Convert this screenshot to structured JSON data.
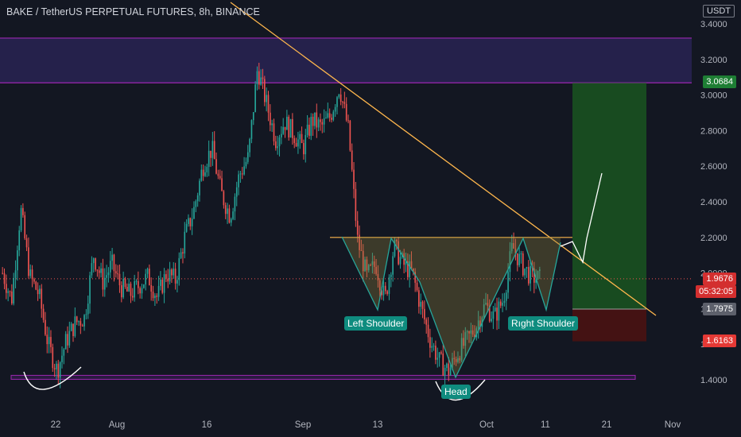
{
  "header": {
    "title": "BAKE / TetherUS PERPETUAL FUTURES, 8h, BINANCE",
    "unit": "USDT"
  },
  "annotations": {
    "left_shoulder": "Left Shoulder",
    "head": "Head",
    "right_shoulder": "Rıght Shoulder"
  },
  "price_labels": {
    "current": "1.9676",
    "countdown": "05:32:05",
    "target": "3.0684",
    "entry": "1.7975",
    "stop": "1.6163"
  },
  "colors": {
    "background": "#131722",
    "up": "#26a69a",
    "down": "#ef5350",
    "trendline": "#ffb74d",
    "zone_line": "#9c27b0",
    "target_zone": "#1b5e20",
    "stop_zone": "#4a1212"
  },
  "chart_data": {
    "type": "candlestick",
    "y_axis": {
      "range": [
        1.23,
        3.49
      ],
      "ticks": [
        "1.4000",
        "1.6000",
        "1.8000",
        "2.0000",
        "2.2000",
        "2.4000",
        "2.6000",
        "2.8000",
        "3.0000",
        "3.2000",
        "3.4000"
      ]
    },
    "x_axis": {
      "ticks": [
        "22",
        "Aug",
        "16",
        "Sep",
        "13",
        "Oct",
        "11",
        "21",
        "Nov"
      ]
    },
    "price_path": [
      [
        "Jul 15",
        2.0
      ],
      [
        "Jul 16",
        1.85
      ],
      [
        "Jul 17",
        2.36
      ],
      [
        "Jul 18",
        1.98
      ],
      [
        "Jul 19",
        1.88
      ],
      [
        "Jul 20",
        1.6
      ],
      [
        "Jul 21",
        1.45
      ],
      [
        "Jul 22",
        1.62
      ],
      [
        "Jul 23",
        1.72
      ],
      [
        "Jul 24",
        1.75
      ],
      [
        "Jul 25",
        2.1
      ],
      [
        "Jul 26",
        1.95
      ],
      [
        "Jul 27",
        2.05
      ],
      [
        "Jul 28",
        1.92
      ],
      [
        "Jul 29",
        1.88
      ],
      [
        "Jul 30",
        1.93
      ],
      [
        "Jul 31",
        1.98
      ],
      [
        "Aug 2",
        1.86
      ],
      [
        "Aug 4",
        2.0
      ],
      [
        "Aug 6",
        1.96
      ],
      [
        "Aug 8",
        2.2
      ],
      [
        "Aug 10",
        2.35
      ],
      [
        "Aug 11",
        2.6
      ],
      [
        "Aug 13",
        2.7
      ],
      [
        "Aug 15",
        2.45
      ],
      [
        "Aug 17",
        2.32
      ],
      [
        "Aug 18",
        2.55
      ],
      [
        "Aug 19",
        2.65
      ],
      [
        "Aug 20",
        3.15
      ],
      [
        "Aug 21",
        2.95
      ],
      [
        "Aug 22",
        2.75
      ],
      [
        "Aug 24",
        2.85
      ],
      [
        "Aug 26",
        2.78
      ],
      [
        "Aug 28",
        2.7
      ],
      [
        "Aug 30",
        2.86
      ],
      [
        "Sep 1",
        2.82
      ],
      [
        "Sep 3",
        2.88
      ],
      [
        "Sep 5",
        3.05
      ],
      [
        "Sep 6",
        2.8
      ],
      [
        "Sep 7",
        2.18
      ],
      [
        "Sep 8",
        1.98
      ],
      [
        "Sep 10",
        2.05
      ],
      [
        "Sep 12",
        1.85
      ],
      [
        "Sep 14",
        2.15
      ],
      [
        "Sep 15",
        2.05
      ],
      [
        "Sep 17",
        2.0
      ],
      [
        "Sep 19",
        1.8
      ],
      [
        "Sep 21",
        1.62
      ],
      [
        "Sep 23",
        1.5
      ],
      [
        "Sep 25",
        1.45
      ],
      [
        "Sep 27",
        1.55
      ],
      [
        "Sep 29",
        1.62
      ],
      [
        "Oct 1",
        1.7
      ],
      [
        "Oct 3",
        1.82
      ],
      [
        "Oct 5",
        1.75
      ],
      [
        "Oct 7",
        1.85
      ],
      [
        "Oct 8",
        2.15
      ],
      [
        "Oct 9",
        2.05
      ],
      [
        "Oct 10",
        1.98
      ],
      [
        "Oct 11",
        1.9676
      ]
    ],
    "levels": {
      "resistance_zone": [
        3.0684,
        3.32
      ],
      "neckline": 2.2,
      "support_zone": [
        1.405,
        1.425
      ],
      "target": 3.0684,
      "entry": 1.7975,
      "stop": 1.6163,
      "current": 1.9676
    },
    "pattern": "inverse head and shoulders"
  }
}
